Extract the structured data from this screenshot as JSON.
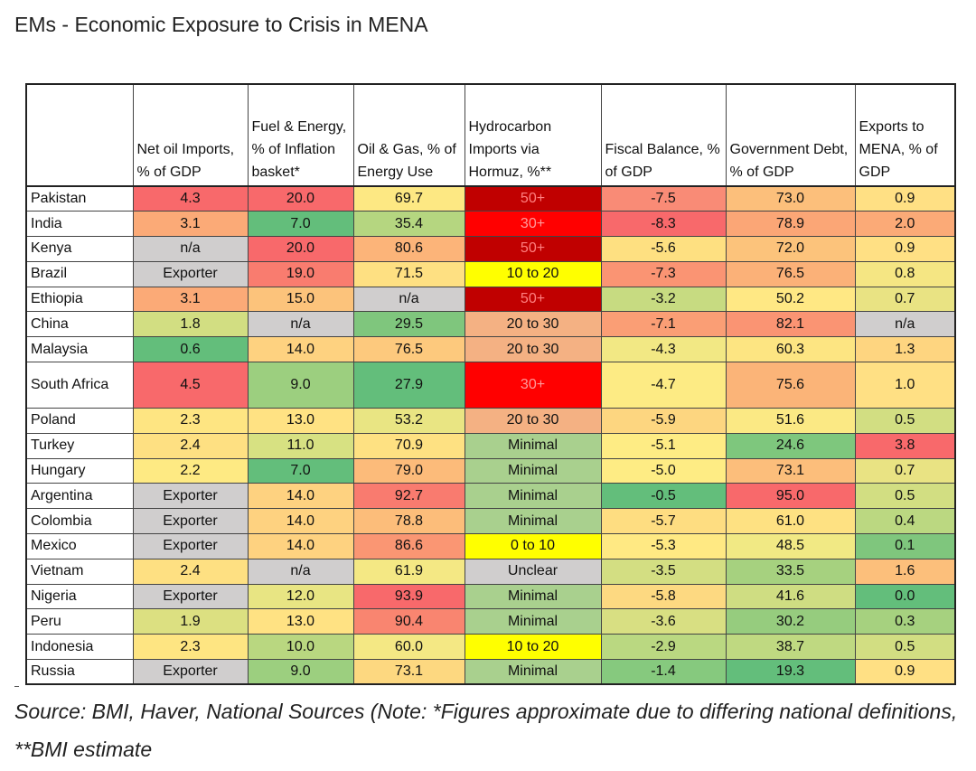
{
  "chart_data": {
    "type": "table",
    "title": "EMs - Economic Exposure to Crisis in MENA",
    "columns": [
      "",
      "Net oil Imports, % of GDP",
      "Fuel & Energy, % of Inflation basket*",
      "Oil & Gas, % of Energy Use",
      "Hydrocarbon Imports via Hormuz, %**",
      "Fiscal Balance, % of GDP",
      "Government Debt, % of GDP",
      "Exports to MENA, % of GDP"
    ],
    "rows": [
      {
        "name": "Pakistan",
        "cells": [
          {
            "text": "4.3",
            "color": "#f8696b"
          },
          {
            "text": "20.0",
            "color": "#f8696b"
          },
          {
            "text": "69.7",
            "color": "#fde883"
          },
          {
            "text": "50+",
            "color": "#c00000",
            "text_color": "#ff8080"
          },
          {
            "text": "-7.5",
            "color": "#f98b76"
          },
          {
            "text": "73.0",
            "color": "#fcbf7b"
          },
          {
            "text": "0.9",
            "color": "#ffe084"
          }
        ]
      },
      {
        "name": "India",
        "cells": [
          {
            "text": "3.1",
            "color": "#fbaa77"
          },
          {
            "text": "7.0",
            "color": "#63be7b"
          },
          {
            "text": "35.4",
            "color": "#b5d680"
          },
          {
            "text": "30+",
            "color": "#ff0000",
            "text_color": "#ff9a9a"
          },
          {
            "text": "-8.3",
            "color": "#f8696b"
          },
          {
            "text": "78.9",
            "color": "#fba676"
          },
          {
            "text": "2.0",
            "color": "#fbaa77"
          }
        ]
      },
      {
        "name": "Kenya",
        "cells": [
          {
            "text": "n/a",
            "color": "#d0cece"
          },
          {
            "text": "20.0",
            "color": "#f8696b"
          },
          {
            "text": "80.6",
            "color": "#fcb479"
          },
          {
            "text": "50+",
            "color": "#c00000",
            "text_color": "#ff8080"
          },
          {
            "text": "-5.6",
            "color": "#fee081"
          },
          {
            "text": "72.0",
            "color": "#fcc37b"
          },
          {
            "text": "0.9",
            "color": "#ffe084"
          }
        ]
      },
      {
        "name": "Brazil",
        "cells": [
          {
            "text": "Exporter",
            "color": "#d0cece"
          },
          {
            "text": "19.0",
            "color": "#f97c6f"
          },
          {
            "text": "71.5",
            "color": "#fee082"
          },
          {
            "text": "10 to 20",
            "color": "#ffff00"
          },
          {
            "text": "-7.3",
            "color": "#fa9473"
          },
          {
            "text": "76.5",
            "color": "#fbb178"
          },
          {
            "text": "0.8",
            "color": "#f5e683"
          }
        ]
      },
      {
        "name": "Ethiopia",
        "cells": [
          {
            "text": "3.1",
            "color": "#fbaa77"
          },
          {
            "text": "15.0",
            "color": "#fcc37b"
          },
          {
            "text": "n/a",
            "color": "#d0cece"
          },
          {
            "text": "50+",
            "color": "#c00000",
            "text_color": "#ff8080"
          },
          {
            "text": "-3.2",
            "color": "#c7db81"
          },
          {
            "text": "50.2",
            "color": "#ffe884"
          },
          {
            "text": "0.7",
            "color": "#e9e383"
          }
        ]
      },
      {
        "name": "China",
        "cells": [
          {
            "text": "1.8",
            "color": "#d2de82"
          },
          {
            "text": "n/a",
            "color": "#d0cece"
          },
          {
            "text": "29.5",
            "color": "#7fc67d"
          },
          {
            "text": "20 to 30",
            "color": "#f4b183"
          },
          {
            "text": "-7.1",
            "color": "#fa9e75"
          },
          {
            "text": "82.1",
            "color": "#fa9473"
          },
          {
            "text": "n/a",
            "color": "#d0cece"
          }
        ]
      },
      {
        "name": "Malaysia",
        "cells": [
          {
            "text": "0.6",
            "color": "#63be7b"
          },
          {
            "text": "14.0",
            "color": "#fed280"
          },
          {
            "text": "76.5",
            "color": "#fdc97d"
          },
          {
            "text": "20 to 30",
            "color": "#f4b183"
          },
          {
            "text": "-4.3",
            "color": "#f2e884"
          },
          {
            "text": "60.3",
            "color": "#fde582"
          },
          {
            "text": "1.3",
            "color": "#fed580"
          }
        ]
      },
      {
        "name": "South Africa",
        "tall": true,
        "cells": [
          {
            "text": "4.5",
            "color": "#f8696b"
          },
          {
            "text": "9.0",
            "color": "#9ccf7f"
          },
          {
            "text": "27.9",
            "color": "#63be7b"
          },
          {
            "text": "30+",
            "color": "#ff0000",
            "text_color": "#ff9a9a"
          },
          {
            "text": "-4.7",
            "color": "#fdeb84"
          },
          {
            "text": "75.6",
            "color": "#fbb478"
          },
          {
            "text": "1.0",
            "color": "#ffe084"
          }
        ]
      },
      {
        "name": "Poland",
        "cells": [
          {
            "text": "2.3",
            "color": "#fee582"
          },
          {
            "text": "13.0",
            "color": "#ffe283"
          },
          {
            "text": "53.2",
            "color": "#e9e583"
          },
          {
            "text": "20 to 30",
            "color": "#f4b183"
          },
          {
            "text": "-5.9",
            "color": "#fdd680"
          },
          {
            "text": "51.6",
            "color": "#fbe984"
          },
          {
            "text": "0.5",
            "color": "#d2de82"
          }
        ]
      },
      {
        "name": "Turkey",
        "cells": [
          {
            "text": "2.4",
            "color": "#fee082"
          },
          {
            "text": "11.0",
            "color": "#d7e182"
          },
          {
            "text": "70.9",
            "color": "#fee182"
          },
          {
            "text": "Minimal",
            "color": "#a9d08e"
          },
          {
            "text": "-5.1",
            "color": "#feec84"
          },
          {
            "text": "24.6",
            "color": "#7ec77d"
          },
          {
            "text": "3.8",
            "color": "#f8696b"
          }
        ]
      },
      {
        "name": "Hungary",
        "cells": [
          {
            "text": "2.2",
            "color": "#feea83"
          },
          {
            "text": "7.0",
            "color": "#63be7b"
          },
          {
            "text": "79.0",
            "color": "#fcbb7a"
          },
          {
            "text": "Minimal",
            "color": "#a9d08e"
          },
          {
            "text": "-5.0",
            "color": "#feec84"
          },
          {
            "text": "73.1",
            "color": "#fcbe7b"
          },
          {
            "text": "0.7",
            "color": "#e9e383"
          }
        ]
      },
      {
        "name": "Argentina",
        "cells": [
          {
            "text": "Exporter",
            "color": "#d0cece"
          },
          {
            "text": "14.0",
            "color": "#fed280"
          },
          {
            "text": "92.7",
            "color": "#f97b6f"
          },
          {
            "text": "Minimal",
            "color": "#a9d08e"
          },
          {
            "text": "-0.5",
            "color": "#63be7b"
          },
          {
            "text": "95.0",
            "color": "#f8696b"
          },
          {
            "text": "0.5",
            "color": "#d2de82"
          }
        ]
      },
      {
        "name": "Colombia",
        "cells": [
          {
            "text": "Exporter",
            "color": "#d0cece"
          },
          {
            "text": "14.0",
            "color": "#fed280"
          },
          {
            "text": "78.8",
            "color": "#fcbd7a"
          },
          {
            "text": "Minimal",
            "color": "#a9d08e"
          },
          {
            "text": "-5.7",
            "color": "#fedd81"
          },
          {
            "text": "61.0",
            "color": "#fee182"
          },
          {
            "text": "0.4",
            "color": "#bbd881"
          }
        ]
      },
      {
        "name": "Mexico",
        "cells": [
          {
            "text": "Exporter",
            "color": "#d0cece"
          },
          {
            "text": "14.0",
            "color": "#fed280"
          },
          {
            "text": "86.6",
            "color": "#fa9673"
          },
          {
            "text": "0 to 10",
            "color": "#ffff00"
          },
          {
            "text": "-5.3",
            "color": "#ffe983"
          },
          {
            "text": "48.5",
            "color": "#f1e984"
          },
          {
            "text": "0.1",
            "color": "#7fc67d"
          }
        ]
      },
      {
        "name": "Vietnam",
        "cells": [
          {
            "text": "2.4",
            "color": "#fee082"
          },
          {
            "text": "n/a",
            "color": "#d0cece"
          },
          {
            "text": "61.9",
            "color": "#f4e884"
          },
          {
            "text": "Unclear",
            "color": "#d0cece"
          },
          {
            "text": "-3.5",
            "color": "#d3de82"
          },
          {
            "text": "33.5",
            "color": "#a6d17f"
          },
          {
            "text": "1.6",
            "color": "#fcbf7b"
          }
        ]
      },
      {
        "name": "Nigeria",
        "cells": [
          {
            "text": "Exporter",
            "color": "#d0cece"
          },
          {
            "text": "12.0",
            "color": "#e8e583"
          },
          {
            "text": "93.9",
            "color": "#f8696b"
          },
          {
            "text": "Minimal",
            "color": "#a9d08e"
          },
          {
            "text": "-5.8",
            "color": "#fdd981"
          },
          {
            "text": "41.6",
            "color": "#cfdd82"
          },
          {
            "text": "0.0",
            "color": "#63be7b"
          }
        ]
      },
      {
        "name": "Peru",
        "cells": [
          {
            "text": "1.9",
            "color": "#dce081"
          },
          {
            "text": "13.0",
            "color": "#ffe283"
          },
          {
            "text": "90.4",
            "color": "#f98570"
          },
          {
            "text": "Minimal",
            "color": "#a9d08e"
          },
          {
            "text": "-3.6",
            "color": "#d8df82"
          },
          {
            "text": "30.2",
            "color": "#96cc7e"
          },
          {
            "text": "0.3",
            "color": "#a6d17f"
          }
        ]
      },
      {
        "name": "Indonesia",
        "cells": [
          {
            "text": "2.3",
            "color": "#fee582"
          },
          {
            "text": "10.0",
            "color": "#b9d780"
          },
          {
            "text": "60.0",
            "color": "#f4e884"
          },
          {
            "text": "10 to 20",
            "color": "#ffff00"
          },
          {
            "text": "-2.9",
            "color": "#bad881"
          },
          {
            "text": "38.7",
            "color": "#bfd981"
          },
          {
            "text": "0.5",
            "color": "#d2de82"
          }
        ]
      },
      {
        "name": "Russia",
        "cells": [
          {
            "text": "Exporter",
            "color": "#d0cece"
          },
          {
            "text": "9.0",
            "color": "#9ccf7f"
          },
          {
            "text": "73.1",
            "color": "#fdd880"
          },
          {
            "text": "Minimal",
            "color": "#a9d08e"
          },
          {
            "text": "-1.4",
            "color": "#86c97e"
          },
          {
            "text": "19.3",
            "color": "#63be7b"
          },
          {
            "text": "0.9",
            "color": "#ffe084"
          }
        ]
      }
    ]
  },
  "source_note": "Source: BMI, Haver, National Sources (Note: *Figures approximate due to differing national definitions, **BMI estimate"
}
